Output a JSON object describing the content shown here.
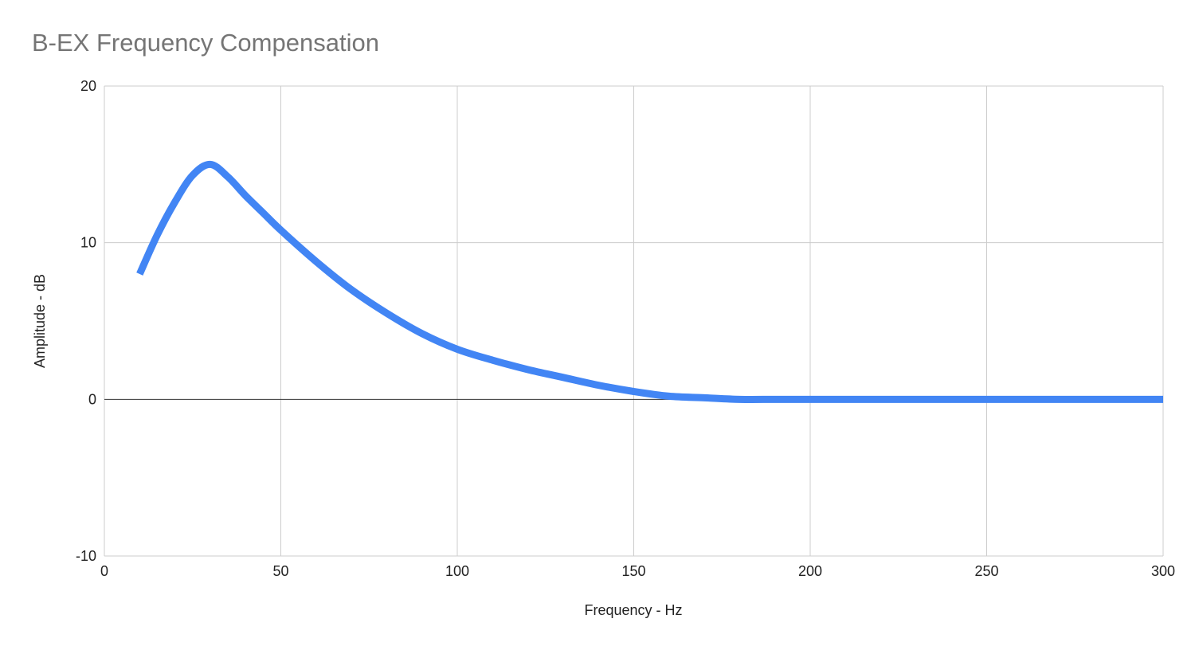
{
  "chart_data": {
    "type": "line",
    "title": "B-EX Frequency Compensation",
    "xlabel": "Frequency - Hz",
    "ylabel": "Amplitude - dB",
    "xlim": [
      0,
      300
    ],
    "ylim": [
      -10,
      20
    ],
    "x_ticks": [
      "0",
      "50",
      "100",
      "150",
      "200",
      "250",
      "300"
    ],
    "y_ticks": [
      "-10",
      "0",
      "10",
      "20"
    ],
    "grid": true,
    "legend": "none",
    "series": [
      {
        "color": "#4285f4",
        "x": [
          10,
          15,
          20,
          25,
          30,
          35,
          40,
          45,
          50,
          60,
          70,
          80,
          90,
          100,
          110,
          120,
          130,
          140,
          150,
          160,
          170,
          180,
          190,
          200,
          250,
          300
        ],
        "y": [
          8,
          10.5,
          12.6,
          14.3,
          15,
          14.2,
          13.0,
          11.9,
          10.8,
          8.8,
          7.0,
          5.5,
          4.2,
          3.2,
          2.5,
          1.9,
          1.4,
          0.9,
          0.5,
          0.2,
          0.1,
          0.0,
          0.0,
          0.0,
          0.0,
          0.0
        ]
      }
    ]
  }
}
